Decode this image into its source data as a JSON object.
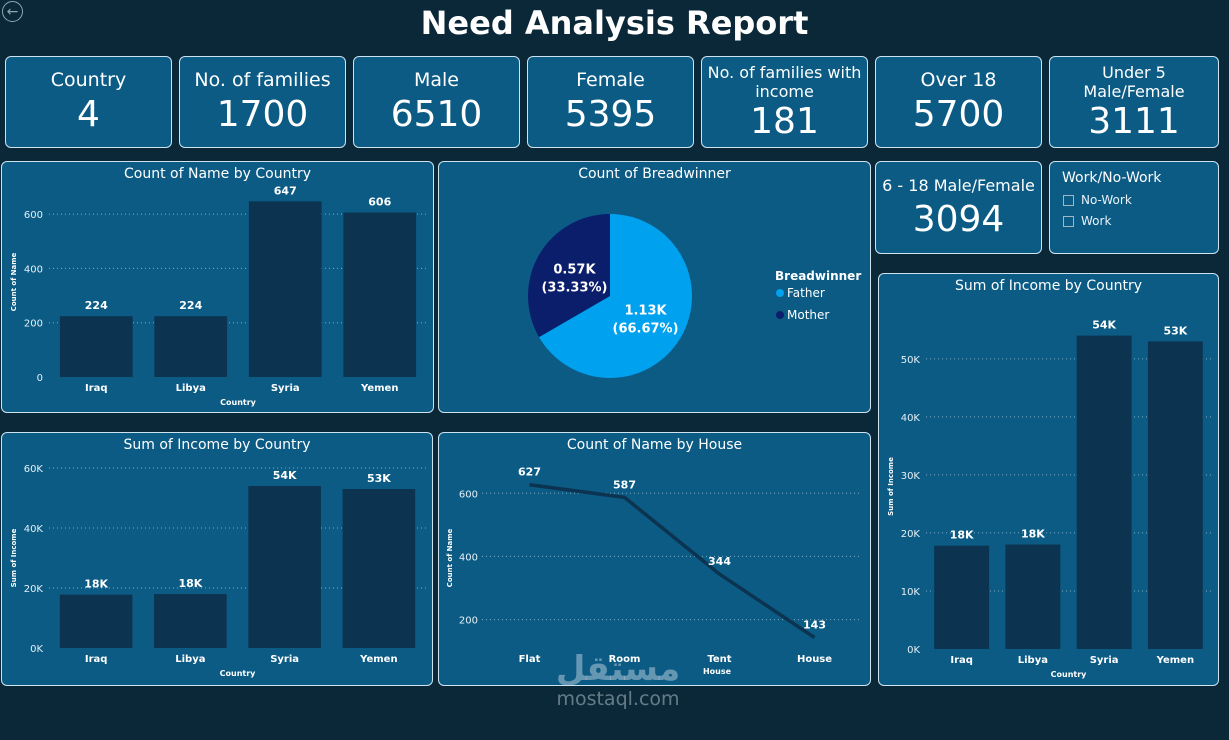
{
  "header": {
    "title": "Need Analysis Report"
  },
  "nav": {
    "back_icon": "back-arrow-icon",
    "back_glyph": "←"
  },
  "cards": [
    {
      "label": "Country",
      "value": "4"
    },
    {
      "label": "No. of families",
      "value": "1700"
    },
    {
      "label": "Male",
      "value": "6510"
    },
    {
      "label": "Female",
      "value": "5395"
    },
    {
      "label": "No. of families with income",
      "value": "181"
    },
    {
      "label": "Over 18",
      "value": "5700"
    },
    {
      "label": "Under 5 Male/Female",
      "value": "3111"
    },
    {
      "label": "6 - 18 Male/Female",
      "value": "3094"
    }
  ],
  "slicer": {
    "title": "Work/No-Work",
    "options": [
      "No-Work",
      "Work"
    ]
  },
  "watermark": {
    "arabic": "مستقل",
    "latin": "mostaql.com"
  },
  "colors": {
    "background": "#0a2838",
    "panel": "#0b5b85",
    "bar": "#0c3350",
    "father": "#00a2f0",
    "mother": "#0b1e6b"
  },
  "chart_data": [
    {
      "id": "name-by-country",
      "type": "bar",
      "title": "Count of Name by Country",
      "xlabel": "Country",
      "ylabel": "Count of Name",
      "categories": [
        "Iraq",
        "Libya",
        "Syria",
        "Yemen"
      ],
      "values": [
        224,
        224,
        647,
        606
      ],
      "data_labels": [
        "224",
        "224",
        "647",
        "606"
      ],
      "yticks": [
        0,
        200,
        400,
        600
      ],
      "ytick_labels": [
        "0",
        "200",
        "400",
        "600"
      ],
      "ylim": [
        0,
        700
      ],
      "grid": true
    },
    {
      "id": "breadwinner",
      "type": "pie",
      "title": "Count of Breadwinner",
      "legend_title": "Breadwinner",
      "legend_position": "right",
      "slices": [
        {
          "name": "Father",
          "value": 1133,
          "label": "1.13K",
          "pct": "(66.67%)"
        },
        {
          "name": "Mother",
          "value": 567,
          "label": "0.57K",
          "pct": "(33.33%)"
        }
      ]
    },
    {
      "id": "income-by-country-left",
      "type": "bar",
      "title": "Sum of Income by Country",
      "xlabel": "Country",
      "ylabel": "Sum of Income",
      "categories": [
        "Iraq",
        "Libya",
        "Syria",
        "Yemen"
      ],
      "values": [
        17800,
        18000,
        54000,
        53000
      ],
      "data_labels": [
        "18K",
        "18K",
        "54K",
        "53K"
      ],
      "yticks": [
        0,
        20000,
        40000,
        60000
      ],
      "ytick_labels": [
        "0K",
        "20K",
        "40K",
        "60K"
      ],
      "ylim": [
        0,
        60000
      ],
      "grid": true
    },
    {
      "id": "name-by-house",
      "type": "line",
      "title": "Count of Name by House",
      "xlabel": "House",
      "ylabel": "Count of Name",
      "categories": [
        "Flat",
        "Room",
        "Tent",
        "House"
      ],
      "values": [
        627,
        587,
        344,
        143
      ],
      "data_labels": [
        "627",
        "587",
        "344",
        "143"
      ],
      "yticks": [
        200,
        400,
        600
      ],
      "ytick_labels": [
        "200",
        "400",
        "600"
      ],
      "ylim": [
        110,
        680
      ],
      "grid": true
    },
    {
      "id": "income-by-country-right",
      "type": "bar",
      "title": "Sum of Income by Country",
      "xlabel": "Country",
      "ylabel": "Sum of Income",
      "categories": [
        "Iraq",
        "Libya",
        "Syria",
        "Yemen"
      ],
      "values": [
        17800,
        18000,
        54000,
        53000
      ],
      "data_labels": [
        "18K",
        "18K",
        "54K",
        "53K"
      ],
      "yticks": [
        0,
        10000,
        20000,
        30000,
        40000,
        50000
      ],
      "ytick_labels": [
        "0K",
        "10K",
        "20K",
        "30K",
        "40K",
        "50K"
      ],
      "ylim": [
        0,
        56000
      ],
      "grid": true
    }
  ]
}
